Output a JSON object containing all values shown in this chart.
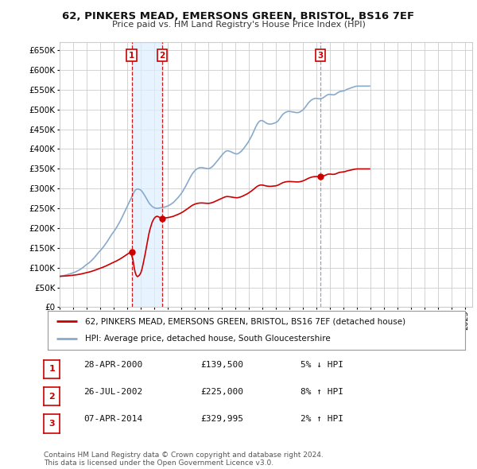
{
  "title": "62, PINKERS MEAD, EMERSONS GREEN, BRISTOL, BS16 7EF",
  "subtitle": "Price paid vs. HM Land Registry's House Price Index (HPI)",
  "ylim": [
    0,
    670000
  ],
  "yticks": [
    0,
    50000,
    100000,
    150000,
    200000,
    250000,
    300000,
    350000,
    400000,
    450000,
    500000,
    550000,
    600000,
    650000
  ],
  "xlim_start": 1995.0,
  "xlim_end": 2025.5,
  "xtick_years": [
    1995,
    1996,
    1997,
    1998,
    1999,
    2000,
    2001,
    2002,
    2003,
    2004,
    2005,
    2006,
    2007,
    2008,
    2009,
    2010,
    2011,
    2012,
    2013,
    2014,
    2015,
    2016,
    2017,
    2018,
    2019,
    2020,
    2021,
    2022,
    2023,
    2024,
    2025
  ],
  "transactions": [
    {
      "num": 1,
      "year": 2000.32,
      "price": 139500,
      "label": "28-APR-2000",
      "price_str": "£139,500",
      "pct": "5%",
      "dir": "↓"
    },
    {
      "num": 2,
      "year": 2002.57,
      "price": 225000,
      "label": "26-JUL-2002",
      "price_str": "£225,000",
      "pct": "8%",
      "dir": "↑"
    },
    {
      "num": 3,
      "year": 2014.27,
      "price": 329995,
      "label": "07-APR-2014",
      "price_str": "£329,995",
      "pct": "2%",
      "dir": "↑"
    }
  ],
  "red_line_color": "#cc0000",
  "blue_line_color": "#88aacc",
  "vline12_color": "#cc0000",
  "vline3_color": "#8899bb",
  "shade_color": "#ddeeff",
  "marker_box_color": "#cc0000",
  "background_color": "#ffffff",
  "grid_color": "#cccccc",
  "footer_text": "Contains HM Land Registry data © Crown copyright and database right 2024.\nThis data is licensed under the Open Government Licence v3.0.",
  "legend_red_label": "62, PINKERS MEAD, EMERSONS GREEN, BRISTOL, BS16 7EF (detached house)",
  "legend_blue_label": "HPI: Average price, detached house, South Gloucestershire",
  "hpi_monthly": [
    78000,
    78500,
    79000,
    79500,
    80000,
    80800,
    81500,
    82200,
    83000,
    84000,
    85000,
    86000,
    87000,
    88000,
    89200,
    90500,
    92000,
    93500,
    95000,
    97000,
    99000,
    101000,
    103500,
    106000,
    108000,
    110000,
    112000,
    114500,
    117000,
    120000,
    123000,
    126000,
    129500,
    133000,
    136500,
    140000,
    143000,
    146000,
    149500,
    153000,
    157000,
    161000,
    165000,
    169500,
    174000,
    178500,
    183000,
    187000,
    191000,
    195000,
    199500,
    204000,
    209000,
    214000,
    219500,
    225000,
    231000,
    237000,
    243000,
    249000,
    255000,
    261000,
    267000,
    273000,
    279000,
    285000,
    291000,
    295500,
    298000,
    299000,
    298500,
    297500,
    296000,
    293000,
    289000,
    284500,
    280000,
    275000,
    270000,
    265000,
    261000,
    258000,
    255000,
    253000,
    251500,
    250500,
    250000,
    250000,
    250500,
    251000,
    251500,
    252000,
    252500,
    253000,
    254000,
    255000,
    256000,
    257500,
    259000,
    261000,
    263000,
    265000,
    268000,
    271000,
    274000,
    277000,
    280500,
    284000,
    288000,
    292000,
    297000,
    302000,
    307000,
    312500,
    318000,
    323500,
    329000,
    334000,
    338500,
    342000,
    345500,
    348000,
    350000,
    351500,
    352500,
    353000,
    353000,
    352500,
    352000,
    351500,
    351000,
    350500,
    350000,
    351000,
    352500,
    354500,
    357000,
    360000,
    363500,
    367000,
    370500,
    374000,
    377500,
    381000,
    384500,
    388000,
    391000,
    393500,
    395000,
    395500,
    395000,
    394000,
    393000,
    391500,
    390000,
    389000,
    388000,
    387500,
    388000,
    389500,
    391500,
    394000,
    397000,
    400500,
    404000,
    408000,
    412000,
    416000,
    421000,
    426000,
    431500,
    437000,
    443000,
    449500,
    456000,
    461500,
    466000,
    469500,
    471500,
    472000,
    471500,
    470000,
    468000,
    466000,
    464500,
    463500,
    463000,
    463000,
    463500,
    464000,
    465000,
    466000,
    467000,
    469000,
    472000,
    476000,
    480000,
    484000,
    487500,
    490000,
    492000,
    493500,
    494500,
    495000,
    495000,
    494500,
    494000,
    493500,
    493000,
    492500,
    492000,
    492000,
    492500,
    493500,
    495000,
    497000,
    499500,
    502500,
    506000,
    510000,
    514000,
    517500,
    520500,
    523000,
    525000,
    526500,
    527500,
    528000,
    528000,
    527500,
    527000,
    527000,
    527500,
    528500,
    530000,
    532000,
    534000,
    536000,
    537500,
    538000,
    538000,
    537500,
    537000,
    537000,
    537500,
    539000,
    541000,
    543000,
    544500,
    545500,
    546000,
    546500,
    547000,
    548000,
    549500,
    551000,
    552000,
    553000,
    554000,
    555000,
    556000,
    557000,
    558000,
    558500,
    559000,
    559000,
    559000,
    559000,
    559000,
    559000,
    559000,
    559000,
    559000,
    559000,
    559000,
    559000
  ]
}
